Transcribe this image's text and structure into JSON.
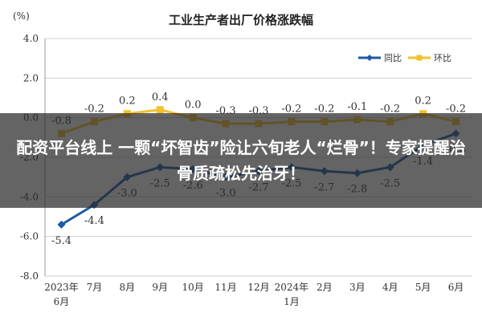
{
  "chart_data": {
    "type": "line",
    "title": "工业生产者出厂价格涨跌幅",
    "unit": "(%)",
    "categories": [
      "2023年\n6月",
      "7月",
      "8月",
      "9月",
      "10月",
      "11月",
      "12月",
      "2024年\n1月",
      "2月",
      "3月",
      "4月",
      "5月",
      "6月"
    ],
    "series": [
      {
        "name": "同比",
        "color": "#1f5aa6",
        "values": [
          -5.4,
          -4.4,
          -3.0,
          -2.5,
          -2.6,
          -3.0,
          -2.7,
          -2.5,
          -2.7,
          -2.8,
          -2.5,
          -1.4,
          -0.8
        ],
        "labels": [
          "-5.4",
          "-4.4",
          "-3.0",
          "-2.5",
          "-2.6",
          "-3.0",
          "-2.7",
          "-2.5",
          "-2.7",
          "-2.8",
          "-2.5",
          "-1.4",
          "-0.8"
        ]
      },
      {
        "name": "环比",
        "color": "#f2c12e",
        "values": [
          -0.8,
          -0.2,
          0.2,
          0.4,
          0.0,
          -0.3,
          -0.3,
          -0.2,
          -0.2,
          -0.1,
          -0.2,
          0.2,
          -0.2
        ],
        "labels": [
          "-0.8",
          "-0.2",
          "0.2",
          "0.4",
          "0.0",
          "-0.3",
          "-0.3",
          "-0.2",
          "-0.2",
          "-0.1",
          "-0.2",
          "0.2",
          "-0.2"
        ]
      }
    ],
    "y_ticks": [
      "4.0",
      "2.0",
      "0.0",
      "-2.0",
      "-4.0",
      "-6.0",
      "-8.0"
    ],
    "ylim": [
      -8,
      4
    ],
    "grid": true,
    "legend": "top-right"
  },
  "overlay": {
    "headline": "配资平台线上 一颗“坏智齿”险让六旬老人“烂骨”！专家提醒治骨质疏松先治牙！"
  }
}
